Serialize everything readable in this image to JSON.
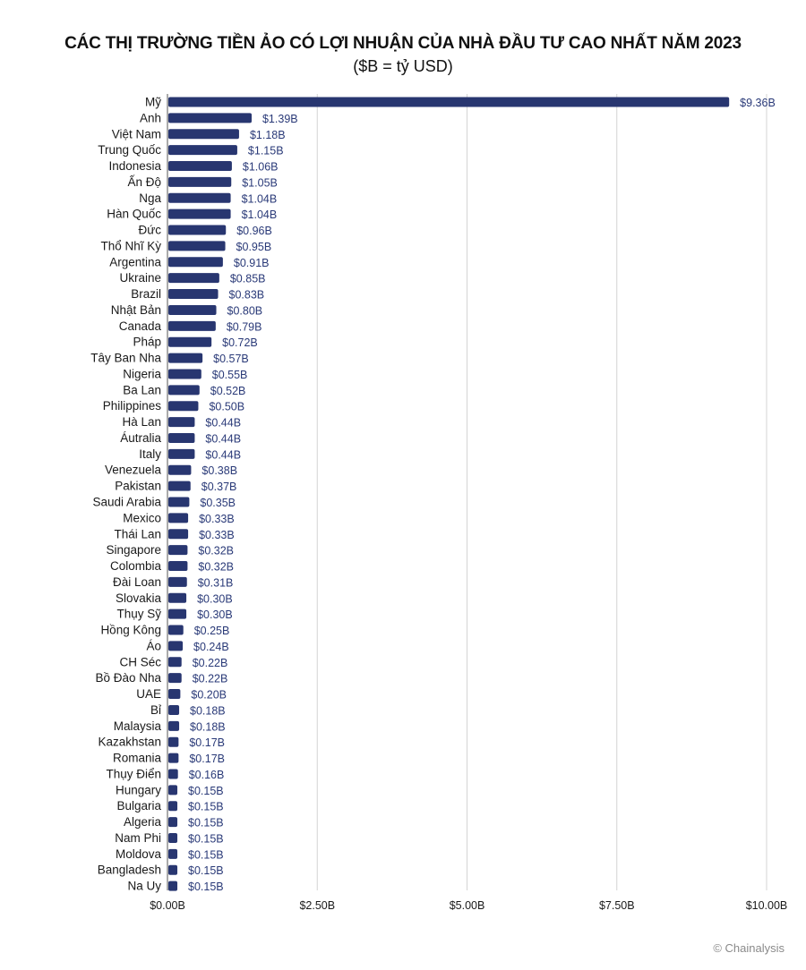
{
  "chart_data": {
    "type": "bar",
    "orientation": "horizontal",
    "title": "CÁC THỊ TRƯỜNG TIỀN ẢO CÓ LỢI NHUẬN CỦA NHÀ ĐẦU TƯ CAO NHẤT NĂM 2023",
    "subtitle": "($B = tỷ USD)",
    "xlim": [
      0,
      10
    ],
    "xticks": [
      0,
      2.5,
      5,
      7.5,
      10
    ],
    "xtick_labels": [
      "$0.00B",
      "$2.50B",
      "$5.00B",
      "$7.50B",
      "$10.00B"
    ],
    "grid": true,
    "bar_color": "#283670",
    "categories": [
      "Mỹ",
      "Anh",
      "Việt Nam",
      "Trung Quốc",
      "Indonesia",
      "Ấn Độ",
      "Nga",
      "Hàn Quốc",
      "Đức",
      "Thổ Nhĩ Kỳ",
      "Argentina",
      "Ukraine",
      "Brazil",
      "Nhật Bản",
      "Canada",
      "Pháp",
      "Tây Ban Nha",
      "Nigeria",
      "Ba Lan",
      "Philippines",
      "Hà Lan",
      "Áutralia",
      "Italy",
      "Venezuela",
      "Pakistan",
      "Saudi Arabia",
      "Mexico",
      "Thái Lan",
      "Singapore",
      "Colombia",
      "Đài Loan",
      "Slovakia",
      "Thụy Sỹ",
      "Hồng Kông",
      "Áo",
      "CH Séc",
      "Bồ Đào Nha",
      "UAE",
      "Bỉ",
      "Malaysia",
      "Kazakhstan",
      "Romania",
      "Thụy Điển",
      "Hungary",
      "Bulgaria",
      "Algeria",
      "Nam Phi",
      "Moldova",
      "Bangladesh",
      "Na Uy"
    ],
    "values": [
      9.36,
      1.39,
      1.18,
      1.15,
      1.06,
      1.05,
      1.04,
      1.04,
      0.96,
      0.95,
      0.91,
      0.85,
      0.83,
      0.8,
      0.79,
      0.72,
      0.57,
      0.55,
      0.52,
      0.5,
      0.44,
      0.44,
      0.44,
      0.38,
      0.37,
      0.35,
      0.33,
      0.33,
      0.32,
      0.32,
      0.31,
      0.3,
      0.3,
      0.25,
      0.24,
      0.22,
      0.22,
      0.2,
      0.18,
      0.18,
      0.17,
      0.17,
      0.16,
      0.15,
      0.15,
      0.15,
      0.15,
      0.15,
      0.15,
      0.15
    ],
    "value_labels": [
      "$9.36B",
      "$1.39B",
      "$1.18B",
      "$1.15B",
      "$1.06B",
      "$1.05B",
      "$1.04B",
      "$1.04B",
      "$0.96B",
      "$0.95B",
      "$0.91B",
      "$0.85B",
      "$0.83B",
      "$0.80B",
      "$0.79B",
      "$0.72B",
      "$0.57B",
      "$0.55B",
      "$0.52B",
      "$0.50B",
      "$0.44B",
      "$0.44B",
      "$0.44B",
      "$0.38B",
      "$0.37B",
      "$0.35B",
      "$0.33B",
      "$0.33B",
      "$0.32B",
      "$0.32B",
      "$0.31B",
      "$0.30B",
      "$0.30B",
      "$0.25B",
      "$0.24B",
      "$0.22B",
      "$0.22B",
      "$0.20B",
      "$0.18B",
      "$0.18B",
      "$0.17B",
      "$0.17B",
      "$0.16B",
      "$0.15B",
      "$0.15B",
      "$0.15B",
      "$0.15B",
      "$0.15B",
      "$0.15B",
      "$0.15B"
    ]
  },
  "credit": "© Chainalysis"
}
